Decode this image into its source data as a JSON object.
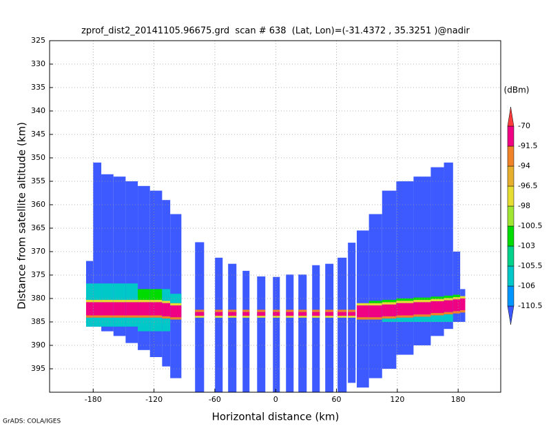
{
  "chart_data": {
    "type": "swath",
    "title": "zprof_dist2_20141105.96675.grd  scan # 638  (Lat, Lon)=(-31.4372 , 35.3251 )@nadir",
    "x_label": "Horizontal distance (km)",
    "y_label": "Distance from satellite altitude (km)",
    "footer": "GrADS: COLA/IGES",
    "xlim": [
      -223,
      222
    ],
    "ylim": [
      325,
      400
    ],
    "y_inverted": true,
    "xticks": [
      -180,
      -120,
      -60,
      0,
      60,
      120,
      180
    ],
    "yticks": [
      325,
      330,
      335,
      340,
      345,
      350,
      355,
      360,
      365,
      370,
      375,
      380,
      385,
      390,
      395
    ],
    "grid": true,
    "colorbar": {
      "label": "(dBm)",
      "levels": [
        -110.5,
        -106,
        -105.5,
        -103,
        -100.5,
        -98,
        -96.5,
        -94,
        -91.5,
        -70
      ],
      "colors": [
        "#3c5aff",
        "#0096ff",
        "#00c8c8",
        "#00d28c",
        "#00dc00",
        "#a0e632",
        "#e6dc32",
        "#e6af2d",
        "#f08228",
        "#f00082",
        "#fa3c3c"
      ]
    },
    "columns": [
      {
        "x0": -187,
        "x1": -180,
        "top": 372,
        "bottom": 386,
        "value": -112,
        "layers": [
          {
            "top": 376.8,
            "bottom": 380.3,
            "value": -105.8
          },
          {
            "top": 380.3,
            "bottom": 380.8,
            "value": -97
          },
          {
            "top": 380.8,
            "bottom": 383.6,
            "value": -80
          },
          {
            "top": 383.6,
            "bottom": 384.1,
            "value": -93
          },
          {
            "top": 384.1,
            "bottom": 386,
            "value": -105.8
          }
        ]
      },
      {
        "x0": -180,
        "x1": -172,
        "top": 351,
        "bottom": 386,
        "value": -112,
        "layers": [
          {
            "top": 376.8,
            "bottom": 380.3,
            "value": -105.8
          },
          {
            "top": 380.3,
            "bottom": 380.8,
            "value": -97
          },
          {
            "top": 380.8,
            "bottom": 383.6,
            "value": -80
          },
          {
            "top": 383.6,
            "bottom": 384.1,
            "value": -93
          },
          {
            "top": 384.1,
            "bottom": 386,
            "value": -105.8
          }
        ]
      },
      {
        "x0": -172,
        "x1": -160,
        "top": 353.5,
        "bottom": 387,
        "value": -112,
        "layers": [
          {
            "top": 376.8,
            "bottom": 380.3,
            "value": -105.8
          },
          {
            "top": 380.3,
            "bottom": 380.8,
            "value": -97
          },
          {
            "top": 380.8,
            "bottom": 383.6,
            "value": -80
          },
          {
            "top": 383.6,
            "bottom": 384.1,
            "value": -93
          },
          {
            "top": 384.1,
            "bottom": 386,
            "value": -105.8
          }
        ]
      },
      {
        "x0": -160,
        "x1": -148,
        "top": 354,
        "bottom": 388,
        "value": -112,
        "layers": [
          {
            "top": 376.8,
            "bottom": 380.3,
            "value": -105.8
          },
          {
            "top": 380.3,
            "bottom": 380.8,
            "value": -97
          },
          {
            "top": 380.8,
            "bottom": 383.6,
            "value": -80
          },
          {
            "top": 383.6,
            "bottom": 384.1,
            "value": -93
          },
          {
            "top": 384.1,
            "bottom": 386,
            "value": -105.8
          }
        ]
      },
      {
        "x0": -148,
        "x1": -136,
        "top": 355,
        "bottom": 389.5,
        "value": -112,
        "layers": [
          {
            "top": 376.8,
            "bottom": 380.3,
            "value": -105.8
          },
          {
            "top": 380.3,
            "bottom": 380.8,
            "value": -97
          },
          {
            "top": 380.8,
            "bottom": 383.6,
            "value": -80
          },
          {
            "top": 383.6,
            "bottom": 384.1,
            "value": -93
          },
          {
            "top": 384.1,
            "bottom": 386,
            "value": -105.8
          }
        ]
      },
      {
        "x0": -136,
        "x1": -124,
        "top": 356,
        "bottom": 391,
        "value": -112,
        "layers": [
          {
            "top": 378,
            "bottom": 380.3,
            "value": -102
          },
          {
            "top": 380.3,
            "bottom": 380.8,
            "value": -97
          },
          {
            "top": 380.8,
            "bottom": 383.6,
            "value": -80
          },
          {
            "top": 383.6,
            "bottom": 384.1,
            "value": -93
          },
          {
            "top": 384.1,
            "bottom": 387,
            "value": -105.8
          }
        ]
      },
      {
        "x0": -124,
        "x1": -112,
        "top": 357,
        "bottom": 392.5,
        "value": -112,
        "layers": [
          {
            "top": 378,
            "bottom": 380.3,
            "value": -102
          },
          {
            "top": 380.3,
            "bottom": 380.8,
            "value": -97
          },
          {
            "top": 380.8,
            "bottom": 383.6,
            "value": -80
          },
          {
            "top": 383.6,
            "bottom": 384.1,
            "value": -93
          },
          {
            "top": 384.1,
            "bottom": 387,
            "value": -105.8
          }
        ]
      },
      {
        "x0": -112,
        "x1": -104,
        "top": 359,
        "bottom": 394.5,
        "value": -112,
        "layers": [
          {
            "top": 378,
            "bottom": 380.5,
            "value": -105.8
          },
          {
            "top": 380.5,
            "bottom": 381,
            "value": -97
          },
          {
            "top": 381,
            "bottom": 383.8,
            "value": -80
          },
          {
            "top": 383.8,
            "bottom": 384.3,
            "value": -93
          },
          {
            "top": 384.3,
            "bottom": 387,
            "value": -105.8
          }
        ]
      },
      {
        "x0": -104,
        "x1": -93,
        "top": 362,
        "bottom": 397,
        "value": -112,
        "layers": [
          {
            "top": 379,
            "bottom": 381,
            "value": -105.8
          },
          {
            "top": 381,
            "bottom": 381.5,
            "value": -97
          },
          {
            "top": 381.5,
            "bottom": 384,
            "value": -80
          },
          {
            "top": 384,
            "bottom": 384.5,
            "value": -93
          }
        ]
      },
      {
        "x0": -79.5,
        "x1": -70.6,
        "top": 368,
        "bottom": 400,
        "value": -112,
        "layers": [
          {
            "top": 382.4,
            "bottom": 382.9,
            "value": -93
          },
          {
            "top": 382.9,
            "bottom": 383.7,
            "value": -80
          },
          {
            "top": 383.7,
            "bottom": 384.1,
            "value": -97
          }
        ]
      },
      {
        "x0": -59.8,
        "x1": -52.3,
        "top": 371.3,
        "bottom": 400,
        "value": -112,
        "layers": [
          {
            "top": 382.4,
            "bottom": 382.9,
            "value": -93
          },
          {
            "top": 382.9,
            "bottom": 383.7,
            "value": -80
          },
          {
            "top": 383.7,
            "bottom": 384.1,
            "value": -97
          }
        ]
      },
      {
        "x0": -46.9,
        "x1": -38.7,
        "top": 372.6,
        "bottom": 400,
        "value": -112,
        "layers": [
          {
            "top": 382.4,
            "bottom": 382.9,
            "value": -93
          },
          {
            "top": 382.9,
            "bottom": 383.7,
            "value": -80
          },
          {
            "top": 383.7,
            "bottom": 384.1,
            "value": -97
          }
        ]
      },
      {
        "x0": -32.6,
        "x1": -25.8,
        "top": 374.1,
        "bottom": 400,
        "value": -112,
        "layers": [
          {
            "top": 382.4,
            "bottom": 382.9,
            "value": -93
          },
          {
            "top": 382.9,
            "bottom": 383.7,
            "value": -80
          },
          {
            "top": 383.7,
            "bottom": 384.1,
            "value": -97
          }
        ]
      },
      {
        "x0": -18.3,
        "x1": -10.2,
        "top": 375.3,
        "bottom": 400,
        "value": -112,
        "layers": [
          {
            "top": 382.4,
            "bottom": 382.9,
            "value": -93
          },
          {
            "top": 382.9,
            "bottom": 383.7,
            "value": -80
          },
          {
            "top": 383.7,
            "bottom": 384.1,
            "value": -97
          }
        ]
      },
      {
        "x0": -2.7,
        "x1": 4.1,
        "top": 375.4,
        "bottom": 400,
        "value": -112,
        "layers": [
          {
            "top": 382.4,
            "bottom": 382.9,
            "value": -93
          },
          {
            "top": 382.9,
            "bottom": 383.7,
            "value": -80
          },
          {
            "top": 383.7,
            "bottom": 384.1,
            "value": -97
          }
        ]
      },
      {
        "x0": 10.2,
        "x1": 17.7,
        "top": 374.9,
        "bottom": 400,
        "value": -112,
        "layers": [
          {
            "top": 382.4,
            "bottom": 382.9,
            "value": -93
          },
          {
            "top": 382.9,
            "bottom": 383.7,
            "value": -80
          },
          {
            "top": 383.7,
            "bottom": 384.1,
            "value": -97
          }
        ]
      },
      {
        "x0": 22.4,
        "x1": 30.6,
        "top": 374.9,
        "bottom": 400,
        "value": -112,
        "layers": [
          {
            "top": 382.4,
            "bottom": 382.9,
            "value": -93
          },
          {
            "top": 382.9,
            "bottom": 383.7,
            "value": -80
          },
          {
            "top": 383.7,
            "bottom": 384.1,
            "value": -97
          }
        ]
      },
      {
        "x0": 36,
        "x1": 43.5,
        "top": 372.9,
        "bottom": 400,
        "value": -112,
        "layers": [
          {
            "top": 382.4,
            "bottom": 382.9,
            "value": -93
          },
          {
            "top": 382.9,
            "bottom": 383.7,
            "value": -80
          },
          {
            "top": 383.7,
            "bottom": 384.1,
            "value": -97
          }
        ]
      },
      {
        "x0": 48.9,
        "x1": 57,
        "top": 372.6,
        "bottom": 400,
        "value": -112,
        "layers": [
          {
            "top": 382.4,
            "bottom": 382.9,
            "value": -93
          },
          {
            "top": 382.9,
            "bottom": 383.7,
            "value": -80
          },
          {
            "top": 383.7,
            "bottom": 384.1,
            "value": -97
          }
        ]
      },
      {
        "x0": 61.1,
        "x1": 70,
        "top": 371.3,
        "bottom": 400,
        "value": -112,
        "layers": [
          {
            "top": 382.4,
            "bottom": 382.9,
            "value": -93
          },
          {
            "top": 382.9,
            "bottom": 383.7,
            "value": -80
          },
          {
            "top": 383.7,
            "bottom": 384.1,
            "value": -97
          }
        ]
      },
      {
        "x0": 71.3,
        "x1": 78.8,
        "top": 368.1,
        "bottom": 398,
        "value": -112,
        "layers": [
          {
            "top": 382.4,
            "bottom": 382.9,
            "value": -93
          },
          {
            "top": 382.9,
            "bottom": 383.7,
            "value": -80
          },
          {
            "top": 383.7,
            "bottom": 384.1,
            "value": -97
          }
        ]
      },
      {
        "x0": 80,
        "x1": 92,
        "top": 365.5,
        "bottom": 399,
        "value": -112,
        "layers": [
          {
            "top": 381,
            "bottom": 381.5,
            "value": -97
          },
          {
            "top": 381.5,
            "bottom": 384,
            "value": -80
          },
          {
            "top": 384,
            "bottom": 384.5,
            "value": -93
          }
        ]
      },
      {
        "x0": 92,
        "x1": 105,
        "top": 362,
        "bottom": 397,
        "value": -112,
        "layers": [
          {
            "top": 380.5,
            "bottom": 381,
            "value": -102
          },
          {
            "top": 381,
            "bottom": 381.5,
            "value": -97
          },
          {
            "top": 381.5,
            "bottom": 384,
            "value": -80
          },
          {
            "top": 384,
            "bottom": 384.5,
            "value": -93
          }
        ]
      },
      {
        "x0": 105,
        "x1": 119,
        "top": 357,
        "bottom": 395,
        "value": -112,
        "layers": [
          {
            "top": 380.3,
            "bottom": 380.8,
            "value": -102
          },
          {
            "top": 380.8,
            "bottom": 381.3,
            "value": -97
          },
          {
            "top": 381.3,
            "bottom": 383.8,
            "value": -80
          },
          {
            "top": 383.8,
            "bottom": 384.3,
            "value": -93
          },
          {
            "top": 384.3,
            "bottom": 385,
            "value": -105.8
          }
        ]
      },
      {
        "x0": 119,
        "x1": 136,
        "top": 355,
        "bottom": 392,
        "value": -112,
        "layers": [
          {
            "top": 380,
            "bottom": 380.5,
            "value": -102
          },
          {
            "top": 380.5,
            "bottom": 381,
            "value": -97
          },
          {
            "top": 381,
            "bottom": 383.6,
            "value": -80
          },
          {
            "top": 383.6,
            "bottom": 384.1,
            "value": -93
          },
          {
            "top": 384.1,
            "bottom": 385,
            "value": -105.8
          }
        ]
      },
      {
        "x0": 136,
        "x1": 153,
        "top": 354,
        "bottom": 390,
        "value": -112,
        "layers": [
          {
            "top": 379.8,
            "bottom": 380.3,
            "value": -102
          },
          {
            "top": 380.3,
            "bottom": 380.8,
            "value": -97
          },
          {
            "top": 380.8,
            "bottom": 383.4,
            "value": -80
          },
          {
            "top": 383.4,
            "bottom": 383.9,
            "value": -93
          },
          {
            "top": 383.9,
            "bottom": 385,
            "value": -105.8
          }
        ]
      },
      {
        "x0": 153,
        "x1": 166,
        "top": 352,
        "bottom": 388,
        "value": -112,
        "layers": [
          {
            "top": 379.6,
            "bottom": 380.1,
            "value": -102
          },
          {
            "top": 380.1,
            "bottom": 380.6,
            "value": -97
          },
          {
            "top": 380.6,
            "bottom": 383.1,
            "value": -80
          },
          {
            "top": 383.1,
            "bottom": 383.6,
            "value": -93
          },
          {
            "top": 383.6,
            "bottom": 385,
            "value": -105.8
          }
        ]
      },
      {
        "x0": 166,
        "x1": 175,
        "top": 351,
        "bottom": 386.5,
        "value": -112,
        "layers": [
          {
            "top": 379.4,
            "bottom": 379.9,
            "value": -102
          },
          {
            "top": 379.9,
            "bottom": 380.4,
            "value": -97
          },
          {
            "top": 380.4,
            "bottom": 382.9,
            "value": -80
          },
          {
            "top": 382.9,
            "bottom": 383.4,
            "value": -93
          },
          {
            "top": 383.4,
            "bottom": 385,
            "value": -105.8
          }
        ]
      },
      {
        "x0": 175,
        "x1": 182,
        "top": 370,
        "bottom": 385,
        "value": -112,
        "layers": [
          {
            "top": 379.2,
            "bottom": 379.7,
            "value": -102
          },
          {
            "top": 379.7,
            "bottom": 380.2,
            "value": -97
          },
          {
            "top": 380.2,
            "bottom": 382.7,
            "value": -80
          },
          {
            "top": 382.7,
            "bottom": 383.2,
            "value": -93
          }
        ]
      },
      {
        "x0": 182,
        "x1": 187,
        "top": 378,
        "bottom": 385,
        "value": -112,
        "layers": [
          {
            "top": 379.5,
            "bottom": 380,
            "value": -97
          },
          {
            "top": 380,
            "bottom": 382.5,
            "value": -80
          },
          {
            "top": 382.5,
            "bottom": 383,
            "value": -93
          }
        ]
      }
    ]
  }
}
